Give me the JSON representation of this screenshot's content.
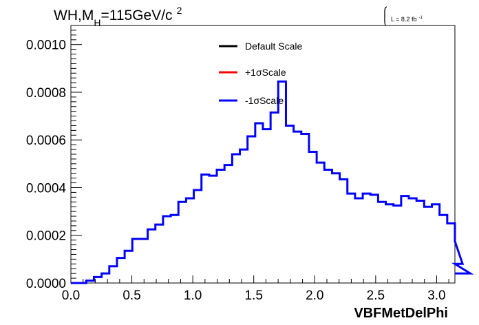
{
  "chart_data": {
    "type": "line",
    "title_main": "WH,M",
    "title_sub": "H",
    "title_rest": "=115GeV/c",
    "title_sup": "2",
    "lumi_text": "L = 8.2 fb",
    "lumi_sup": "-1",
    "xlabel": "VBFMetDelPhi",
    "ylabel": "",
    "xlim": [
      0.0,
      3.15
    ],
    "ylim": [
      0.0,
      0.00108
    ],
    "xticks": [
      {
        "v": 0.0,
        "label": "0.0"
      },
      {
        "v": 0.5,
        "label": "0.5"
      },
      {
        "v": 1.0,
        "label": "1.0"
      },
      {
        "v": 1.5,
        "label": "1.5"
      },
      {
        "v": 2.0,
        "label": "2.0"
      },
      {
        "v": 2.5,
        "label": "2.5"
      },
      {
        "v": 3.0,
        "label": "3.0"
      }
    ],
    "yticks": [
      {
        "v": 0.0,
        "label": "0.0000"
      },
      {
        "v": 0.0002,
        "label": "0.0002"
      },
      {
        "v": 0.0004,
        "label": "0.0004"
      },
      {
        "v": 0.0006,
        "label": "0.0006"
      },
      {
        "v": 0.0008,
        "label": "0.0008"
      },
      {
        "v": 0.001,
        "label": "0.0010"
      }
    ],
    "bin_width": 0.063,
    "bin_start": 0.0,
    "legend": [
      {
        "name": "Default Scale",
        "color": "#000000"
      },
      {
        "name": "+1σScale",
        "color": "#ff0000"
      },
      {
        "name": "-1σScale",
        "color": "#0000ff"
      }
    ],
    "legend_position": "top-center",
    "series": [
      {
        "name": "-1σScale",
        "color": "#0000ff",
        "values": [
          0.0,
          0.0,
          1e-05,
          2.5e-05,
          4e-05,
          7e-05,
          0.000105,
          0.000135,
          0.000185,
          0.000185,
          0.000225,
          0.000245,
          0.00028,
          0.000285,
          0.00034,
          0.000355,
          0.00039,
          0.000455,
          0.00045,
          0.000475,
          0.000495,
          0.00054,
          0.00056,
          0.000615,
          0.00067,
          0.000645,
          0.000715,
          0.000845,
          0.00066,
          0.000635,
          0.000625,
          0.00055,
          0.000505,
          0.000475,
          0.00046,
          0.000435,
          0.000375,
          0.000355,
          0.000375,
          0.00037,
          0.00034,
          0.00033,
          0.000325,
          0.000365,
          0.000355,
          0.000345,
          0.00032,
          0.00033,
          0.000285,
          0.00025,
          0.000175,
          8e-05,
          4e-05
        ]
      }
    ],
    "grid": false
  }
}
